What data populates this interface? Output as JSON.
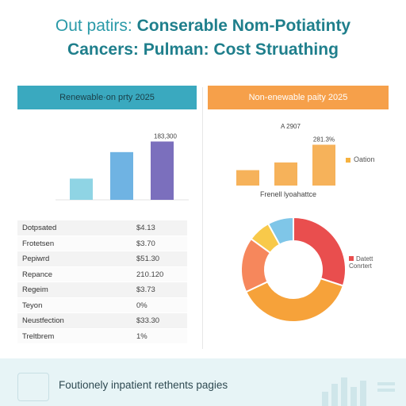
{
  "header": {
    "line1_lead": "Out patirs: ",
    "line1_bold": "Conserable Nom-Potiatinty",
    "line2": "Cancers: Pulman: Cost Struathing"
  },
  "panels": {
    "left_title": "Renewable·on prty 2025",
    "right_title": "Non-enewable paity 2025"
  },
  "colors": {
    "teal": "#3aa9bf",
    "orange": "#f6a04a",
    "bar_light_blue": "#8fd4e4",
    "bar_blue": "#6fb3e3",
    "bar_purple": "#7b6fbd",
    "bar_orange": "#f6b25a",
    "pie_red": "#e94e4e",
    "pie_orange": "#f6a23a",
    "pie_salmon": "#f6875c",
    "pie_yellow": "#f8c94a",
    "pie_blue": "#7fc6e8"
  },
  "chart_data": [
    {
      "type": "bar",
      "categories": [
        "",
        "",
        ""
      ],
      "values": [
        24,
        54,
        66
      ],
      "ylim": [
        0,
        70
      ],
      "data_labels": [
        "",
        "",
        "183,300"
      ],
      "colors": [
        "#8fd4e4",
        "#6fb3e3",
        "#7b6fbd"
      ],
      "grid": false
    },
    {
      "type": "bar",
      "categories": [
        "",
        "",
        ""
      ],
      "values": [
        20,
        30,
        53
      ],
      "ylim": [
        0,
        70
      ],
      "data_labels": [
        "",
        "",
        "281.3%"
      ],
      "annotation": "A 2907",
      "legend": [
        "Oation"
      ],
      "caption": "Frenell lyoahattce",
      "colors": [
        "#f6b25a",
        "#f6b25a",
        "#f6b25a"
      ],
      "grid": false
    },
    {
      "type": "pie",
      "donut": true,
      "values": [
        30,
        38,
        17,
        7,
        8
      ],
      "colors": [
        "#e94e4e",
        "#f6a23a",
        "#f6875c",
        "#f8c94a",
        "#7fc6e8"
      ],
      "legend": [
        {
          "line1": "Datett",
          "line2": "Conrtert"
        }
      ]
    }
  ],
  "table": {
    "rows": [
      {
        "label": "Dotpsated",
        "value": "$4.13"
      },
      {
        "label": "Frotetsen",
        "value": "$3.70"
      },
      {
        "label": "Pepiwrd",
        "value": "$51.30"
      },
      {
        "label": "Repance",
        "value": "210.120"
      },
      {
        "label": "Regeim",
        "value": "$3.73"
      },
      {
        "label": "Teyon",
        "value": "0%"
      },
      {
        "label": "Neustfection",
        "value": "$33.30"
      },
      {
        "label": "Treltbrem",
        "value": "1%"
      }
    ]
  },
  "footer": {
    "text": "Foutionely inpatient rethents pagies"
  }
}
